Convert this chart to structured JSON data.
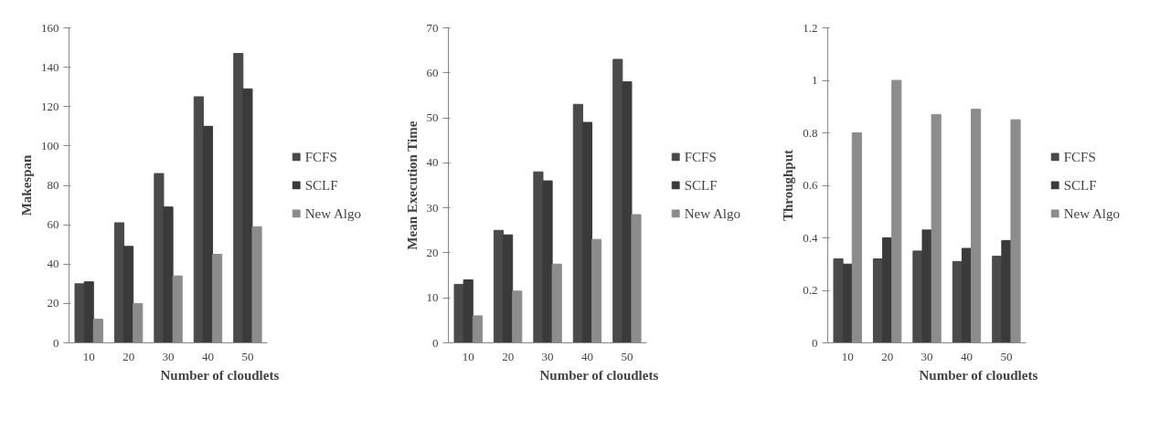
{
  "chart_data": [
    {
      "type": "bar",
      "xlabel": "Number of cloudlets",
      "ylabel": "Makespan",
      "categories": [
        "10",
        "20",
        "30",
        "40",
        "50"
      ],
      "ylim": [
        0,
        160
      ],
      "yticks": [
        0,
        20,
        40,
        60,
        80,
        100,
        120,
        140,
        160
      ],
      "grid": false,
      "legend": "right",
      "series": [
        {
          "name": "FCFS",
          "color": "#4a4a4a",
          "values": [
            30,
            61,
            86,
            125,
            147
          ]
        },
        {
          "name": "SCLF",
          "color": "#3a3a3a",
          "values": [
            31,
            49,
            69,
            110,
            129
          ]
        },
        {
          "name": "New Algo",
          "color": "#8c8c8c",
          "values": [
            12,
            20,
            34,
            45,
            59
          ]
        }
      ]
    },
    {
      "type": "bar",
      "xlabel": "Number of cloudlets",
      "ylabel": "Mean Execution Time",
      "categories": [
        "10",
        "20",
        "30",
        "40",
        "50"
      ],
      "ylim": [
        0,
        70
      ],
      "yticks": [
        0,
        10,
        20,
        30,
        40,
        50,
        60,
        70
      ],
      "grid": false,
      "legend": "right",
      "series": [
        {
          "name": "FCFS",
          "color": "#4a4a4a",
          "values": [
            13,
            25,
            38,
            53,
            63
          ]
        },
        {
          "name": "SCLF",
          "color": "#3a3a3a",
          "values": [
            14,
            24,
            36,
            49,
            58
          ]
        },
        {
          "name": "New Algo",
          "color": "#8c8c8c",
          "values": [
            6,
            11.5,
            17.5,
            23,
            28.5
          ]
        }
      ]
    },
    {
      "type": "bar",
      "xlabel": "Number of cloudlets",
      "ylabel": "Throughput",
      "categories": [
        "10",
        "20",
        "30",
        "40",
        "50"
      ],
      "ylim": [
        0,
        1.2
      ],
      "yticks": [
        0,
        0.2,
        0.4,
        0.6,
        0.8,
        1,
        1.2
      ],
      "grid": false,
      "legend": "right",
      "series": [
        {
          "name": "FCFS",
          "color": "#4a4a4a",
          "values": [
            0.32,
            0.32,
            0.35,
            0.31,
            0.33
          ]
        },
        {
          "name": "SCLF",
          "color": "#3a3a3a",
          "values": [
            0.3,
            0.4,
            0.43,
            0.36,
            0.39
          ]
        },
        {
          "name": "New Algo",
          "color": "#8c8c8c",
          "values": [
            0.8,
            1.0,
            0.87,
            0.89,
            0.85
          ]
        }
      ]
    }
  ]
}
